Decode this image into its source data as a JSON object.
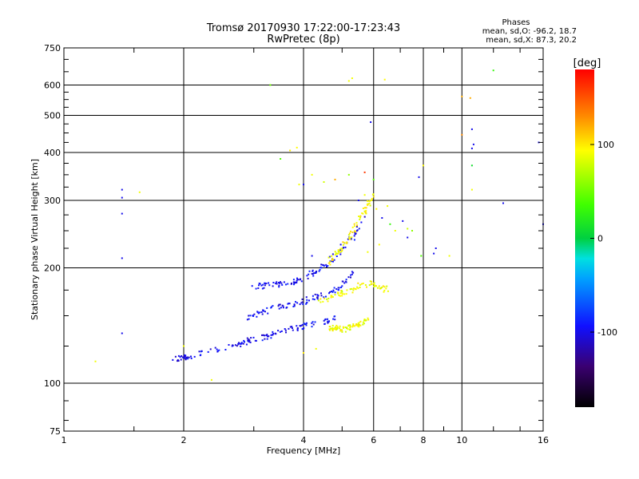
{
  "chart_data": {
    "type": "scatter",
    "title": "Tromsø 20170930 17:22:00-17:23:43",
    "subtitle": "RwPretec (8p)",
    "xlabel": "Frequency [MHz]",
    "ylabel": "Stationary phase Virtual Height [km]",
    "x_scale": "log",
    "y_scale": "log",
    "xlim": [
      1,
      16
    ],
    "ylim": [
      75,
      750
    ],
    "grid": true,
    "x_ticks": [
      {
        "value": 1,
        "label": "1"
      },
      {
        "value": 2,
        "label": "2"
      },
      {
        "value": 4,
        "label": "4"
      },
      {
        "value": 6,
        "label": "6"
      },
      {
        "value": 8,
        "label": "8"
      },
      {
        "value": 10,
        "label": "10"
      },
      {
        "value": 16,
        "label": "16"
      }
    ],
    "y_ticks": [
      {
        "value": 75,
        "label": "75"
      },
      {
        "value": 100,
        "label": "100"
      },
      {
        "value": 200,
        "label": "200"
      },
      {
        "value": 300,
        "label": "300"
      },
      {
        "value": 400,
        "label": "400"
      },
      {
        "value": 500,
        "label": "500"
      },
      {
        "value": 600,
        "label": "600"
      },
      {
        "value": 750,
        "label": "750"
      }
    ],
    "x_minor_ticks": [
      1.5,
      3,
      5,
      7,
      9,
      12,
      14
    ],
    "y_minor_ticks": [
      80,
      90,
      125,
      150,
      175,
      225,
      250,
      275,
      325,
      350,
      375,
      425,
      450,
      475,
      525,
      550,
      575,
      650,
      700
    ],
    "stats": {
      "heading": "Phases",
      "o_line": "mean, sd,O: -96.2, 18.7",
      "x_line": "mean, sd,X:  87.3, 20.2"
    },
    "colorbar": {
      "label": "[deg]",
      "range": [
        -180,
        180
      ],
      "ticks": [
        {
          "value": 100,
          "label": "100"
        },
        {
          "value": 0,
          "label": "0"
        },
        {
          "value": -100,
          "label": "-100"
        }
      ]
    },
    "trace_low_o": {
      "phase": -100,
      "x": [
        1.9,
        2.0,
        2.1,
        2.5,
        2.8,
        3.0,
        3.3,
        3.6,
        4.0,
        4.5,
        4.8
      ],
      "y": [
        116,
        117,
        118,
        123,
        127,
        130,
        133,
        137,
        141,
        145,
        148
      ]
    },
    "trace_low_x": {
      "phase": 90,
      "x": [
        4.6,
        4.8,
        5.0,
        5.3,
        5.5,
        5.8
      ],
      "y": [
        140,
        139,
        138,
        140,
        142,
        146
      ]
    },
    "trace_mid_o": {
      "phase": -100,
      "x": [
        2.9,
        3.1,
        3.4,
        3.7,
        4.0,
        4.3,
        4.7,
        5.0,
        5.3
      ],
      "y": [
        148,
        152,
        158,
        160,
        163,
        168,
        172,
        180,
        195
      ]
    },
    "trace_mid_x": {
      "phase": 90,
      "x": [
        4.4,
        4.7,
        5.0,
        5.3,
        5.6,
        6.0,
        6.3,
        6.5
      ],
      "y": [
        163,
        167,
        172,
        176,
        180,
        182,
        178,
        175
      ]
    },
    "trace_upper_o": {
      "phase": -100,
      "x": [
        3.0,
        3.2,
        3.5,
        3.8,
        4.0,
        4.3,
        4.6,
        4.9,
        5.3,
        5.7
      ],
      "y": [
        178,
        180,
        181,
        184,
        188,
        196,
        205,
        220,
        240,
        270
      ]
    },
    "trace_upper_x": {
      "phase": 95,
      "x": [
        4.6,
        4.9,
        5.2,
        5.5,
        5.8,
        6.0
      ],
      "y": [
        205,
        220,
        240,
        265,
        290,
        320
      ]
    },
    "scatter_points": {
      "x": [
        1.4,
        1.4,
        1.4,
        1.4,
        1.2,
        1.4,
        1.55,
        2.0,
        2.35,
        3.3,
        3.5,
        3.7,
        3.85,
        3.9,
        4.0,
        4.2,
        4.0,
        4.3,
        5.2,
        5.3,
        6.4,
        7.1,
        7.3,
        7.3,
        7.5,
        7.8,
        7.9,
        8.0,
        8.5,
        8.6,
        9.3,
        10.0,
        10.0,
        10.5,
        10.6,
        10.6,
        10.6,
        10.7,
        10.6,
        12.0,
        12.7,
        15.6,
        16.0,
        4.5,
        4.8,
        5.2,
        5.5,
        5.7,
        5.9,
        6.0,
        6.1,
        6.3,
        6.5,
        6.6,
        6.8,
        5.7,
        5.8,
        4.2,
        6.2
      ],
      "y": [
        320,
        305,
        277,
        212,
        114,
        135,
        315,
        125,
        102,
        600,
        385,
        405,
        412,
        330,
        330,
        350,
        120,
        123,
        615,
        625,
        620,
        265,
        253,
        240,
        250,
        345,
        215,
        370,
        218,
        225,
        215,
        445,
        560,
        555,
        460,
        410,
        370,
        420,
        320,
        655,
        295,
        425,
        260,
        335,
        340,
        350,
        300,
        310,
        480,
        340,
        285,
        270,
        290,
        260,
        250,
        355,
        220,
        215,
        230
      ],
      "phases": [
        -100,
        -100,
        -100,
        -100,
        90,
        -100,
        90,
        90,
        90,
        50,
        40,
        100,
        95,
        90,
        -100,
        90,
        100,
        90,
        90,
        90,
        95,
        -100,
        80,
        -100,
        60,
        -100,
        40,
        95,
        -100,
        -100,
        90,
        130,
        120,
        120,
        -100,
        -100,
        10,
        -100,
        90,
        30,
        -100,
        -100,
        -100,
        80,
        120,
        60,
        -100,
        90,
        -100,
        40,
        95,
        -100,
        90,
        30,
        90,
        160,
        90,
        -100,
        95
      ]
    }
  }
}
